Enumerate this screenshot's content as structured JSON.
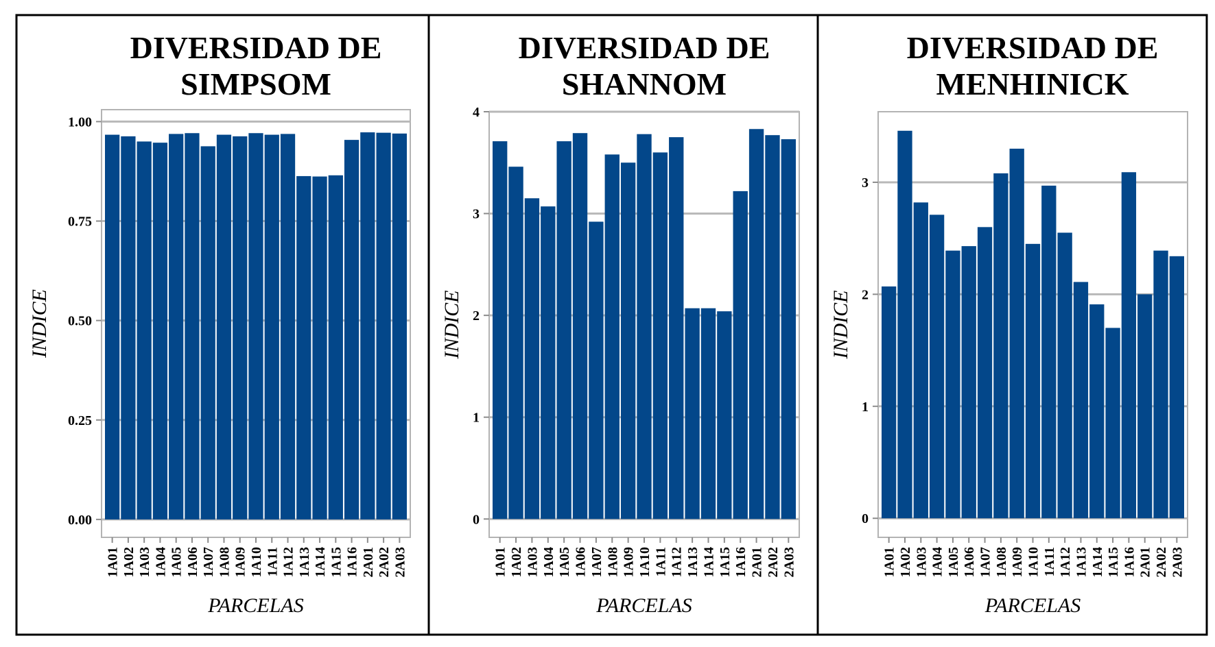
{
  "chart_data": [
    {
      "type": "bar",
      "title": "DIVERSIDAD DE SIMPSOM",
      "title_lines": [
        "DIVERSIDAD DE",
        "SIMPSOM"
      ],
      "xlabel": "PARCELAS",
      "ylabel": "INDICE",
      "categories": [
        "1A01",
        "1A02",
        "1A03",
        "1A04",
        "1A05",
        "1A06",
        "1A07",
        "1A08",
        "1A09",
        "1A10",
        "1A11",
        "1A12",
        "1A13",
        "1A14",
        "1A15",
        "1A16",
        "2A01",
        "2A02",
        "2A03"
      ],
      "values": [
        0.967,
        0.963,
        0.95,
        0.947,
        0.969,
        0.971,
        0.938,
        0.967,
        0.963,
        0.971,
        0.967,
        0.969,
        0.863,
        0.862,
        0.865,
        0.954,
        0.973,
        0.972,
        0.97
      ],
      "ylim": [
        -0.045,
        1.03
      ],
      "yticks": [
        0.0,
        0.25,
        0.5,
        0.75,
        1.0
      ],
      "ytick_labels": [
        "0.00",
        "0.25",
        "0.50",
        "0.75",
        "1.00"
      ],
      "grid": true,
      "bar_color": "#03478a"
    },
    {
      "type": "bar",
      "title": "DIVERSIDAD DE SHANNOM",
      "title_lines": [
        "DIVERSIDAD DE",
        "SHANNOM"
      ],
      "xlabel": "PARCELAS",
      "ylabel": "INDICE",
      "categories": [
        "1A01",
        "1A02",
        "1A03",
        "1A04",
        "1A05",
        "1A06",
        "1A07",
        "1A08",
        "1A09",
        "1A10",
        "1A11",
        "1A12",
        "1A13",
        "1A14",
        "1A15",
        "1A16",
        "2A01",
        "2A02",
        "2A03"
      ],
      "values": [
        3.71,
        3.46,
        3.15,
        3.07,
        3.71,
        3.79,
        2.92,
        3.58,
        3.5,
        3.78,
        3.6,
        3.75,
        2.07,
        2.07,
        2.04,
        3.22,
        3.83,
        3.77,
        3.73
      ],
      "ylim": [
        -0.18,
        4.0
      ],
      "yticks": [
        0,
        1,
        2,
        3,
        4
      ],
      "ytick_labels": [
        "0",
        "1",
        "2",
        "3",
        "4"
      ],
      "grid": true,
      "bar_color": "#03478a"
    },
    {
      "type": "bar",
      "title": "DIVERSIDAD DE MENHINICK",
      "title_lines": [
        "DIVERSIDAD DE",
        "MENHINICK"
      ],
      "xlabel": "PARCELAS",
      "ylabel": "INDICE",
      "categories": [
        "1A01",
        "1A02",
        "1A03",
        "1A04",
        "1A05",
        "1A06",
        "1A07",
        "1A08",
        "1A09",
        "1A10",
        "1A11",
        "1A12",
        "1A13",
        "1A14",
        "1A15",
        "1A16",
        "2A01",
        "2A02",
        "2A03"
      ],
      "values": [
        2.07,
        3.46,
        2.82,
        2.71,
        2.39,
        2.43,
        2.6,
        3.08,
        3.3,
        2.45,
        2.97,
        2.55,
        2.11,
        1.91,
        1.7,
        3.09,
        2.0,
        2.39,
        2.34
      ],
      "ylim": [
        -0.17,
        3.63
      ],
      "yticks": [
        0,
        1,
        2,
        3
      ],
      "ytick_labels": [
        "0",
        "1",
        "2",
        "3"
      ],
      "grid": true,
      "bar_color": "#03478a"
    }
  ]
}
